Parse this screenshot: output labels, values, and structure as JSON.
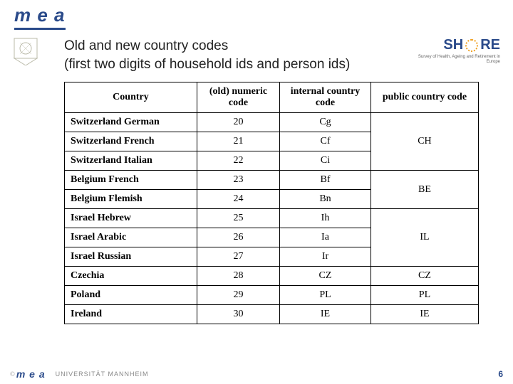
{
  "logo": {
    "text": "m e a"
  },
  "title": {
    "line1": "Old and new country codes",
    "line2": "(first two digits of household ids and person ids)"
  },
  "share": {
    "brand": "SHARE",
    "subtitle": "Survey of Health, Ageing and Retirement in Europe"
  },
  "table": {
    "headers": {
      "country": "Country",
      "old": "(old) numeric code",
      "internal": "internal country code",
      "public": "public country code"
    },
    "rows": [
      {
        "country": "Switzerland German",
        "old": "20",
        "internal": "Cg"
      },
      {
        "country": "Switzerland French",
        "old": "21",
        "internal": "Cf"
      },
      {
        "country": "Switzerland Italian",
        "old": "22",
        "internal": "Ci"
      },
      {
        "country": "Belgium French",
        "old": "23",
        "internal": "Bf"
      },
      {
        "country": "Belgium Flemish",
        "old": "24",
        "internal": "Bn"
      },
      {
        "country": "Israel Hebrew",
        "old": "25",
        "internal": "Ih"
      },
      {
        "country": "Israel Arabic",
        "old": "26",
        "internal": "Ia"
      },
      {
        "country": "Israel Russian",
        "old": "27",
        "internal": "Ir"
      },
      {
        "country": "Czechia",
        "old": "28",
        "internal": "CZ",
        "public": "CZ"
      },
      {
        "country": "Poland",
        "old": "29",
        "internal": "PL",
        "public": "PL"
      },
      {
        "country": "Ireland",
        "old": "30",
        "internal": "IE",
        "public": "IE"
      }
    ],
    "merged_public": [
      {
        "start": 0,
        "span": 3,
        "value": "CH"
      },
      {
        "start": 3,
        "span": 2,
        "value": "BE"
      },
      {
        "start": 5,
        "span": 3,
        "value": "IL"
      }
    ]
  },
  "footer": {
    "copyright": "©",
    "mea": "m e a",
    "university": "UNIVERSITÄT MANNHEIM",
    "page": "6"
  },
  "colors": {
    "brand": "#2a4a8a",
    "border": "#000000",
    "background": "#ffffff"
  }
}
